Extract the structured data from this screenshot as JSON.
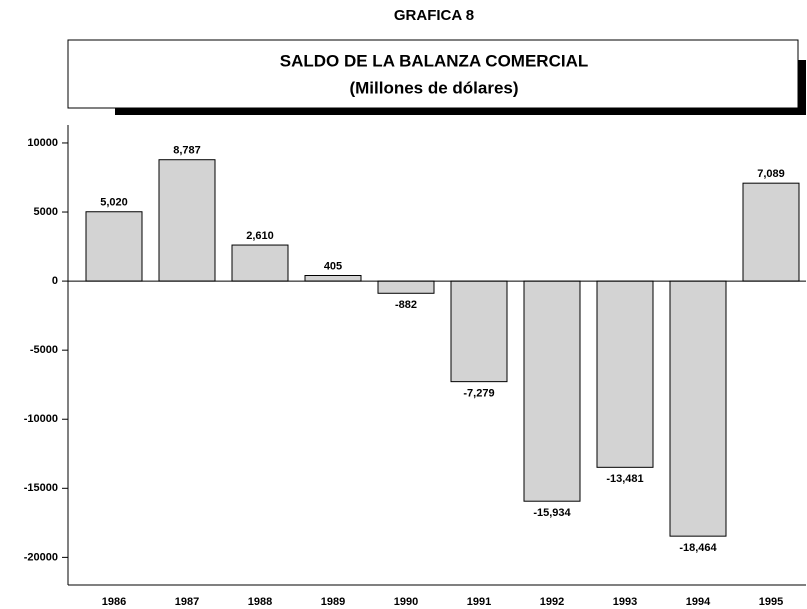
{
  "chart_data": {
    "type": "bar",
    "header": "GRAFICA 8",
    "title": "SALDO DE LA BALANZA COMERCIAL",
    "subtitle": "(Millones de dólares)",
    "categories": [
      "1986",
      "1987",
      "1988",
      "1989",
      "1990",
      "1991",
      "1992",
      "1993",
      "1994",
      "1995"
    ],
    "values": [
      5020,
      8787,
      2610,
      405,
      -882,
      -7279,
      -15934,
      -13481,
      -18464,
      7089
    ],
    "value_labels": [
      "5,020",
      "8,787",
      "2,610",
      "405",
      "-882",
      "-7,279",
      "-15,934",
      "-13,481",
      "-18,464",
      "7,089"
    ],
    "color": "#d3d3d3",
    "ylim": [
      -22000,
      11300
    ],
    "yticks": [
      -20000,
      -15000,
      -10000,
      -5000,
      0,
      5000,
      10000
    ],
    "grid": false
  }
}
